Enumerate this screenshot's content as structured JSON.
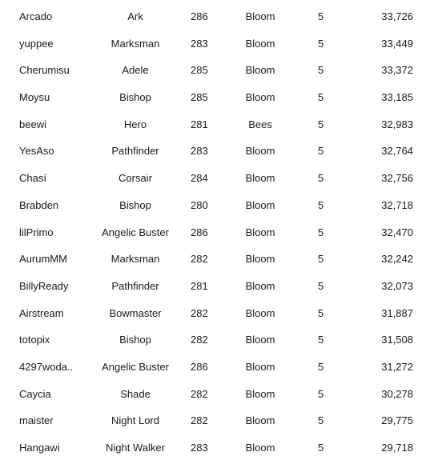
{
  "rankings": [
    {
      "name": "Arcado",
      "job": "Ark",
      "level": "286",
      "world": "Bloom",
      "stars": "5",
      "exp": "33,726"
    },
    {
      "name": "yuppee",
      "job": "Marksman",
      "level": "283",
      "world": "Bloom",
      "stars": "5",
      "exp": "33,449"
    },
    {
      "name": "Cherumisu",
      "job": "Adele",
      "level": "285",
      "world": "Bloom",
      "stars": "5",
      "exp": "33,372"
    },
    {
      "name": "Moysu",
      "job": "Bishop",
      "level": "285",
      "world": "Bloom",
      "stars": "5",
      "exp": "33,185"
    },
    {
      "name": "beewi",
      "job": "Hero",
      "level": "281",
      "world": "Bees",
      "stars": "5",
      "exp": "32,983"
    },
    {
      "name": "YesAso",
      "job": "Pathfinder",
      "level": "283",
      "world": "Bloom",
      "stars": "5",
      "exp": "32,764"
    },
    {
      "name": "Chasí",
      "job": "Corsair",
      "level": "284",
      "world": "Bloom",
      "stars": "5",
      "exp": "32,756"
    },
    {
      "name": "Brabden",
      "job": "Bishop",
      "level": "280",
      "world": "Bloom",
      "stars": "5",
      "exp": "32,718"
    },
    {
      "name": "lilPrimo",
      "job": "Angelic Buster",
      "level": "286",
      "world": "Bloom",
      "stars": "5",
      "exp": "32,470"
    },
    {
      "name": "AurumMM",
      "job": "Marksman",
      "level": "282",
      "world": "Bloom",
      "stars": "5",
      "exp": "32,242"
    },
    {
      "name": "BillyReady",
      "job": "Pathfinder",
      "level": "281",
      "world": "Bloom",
      "stars": "5",
      "exp": "32,073"
    },
    {
      "name": "Airstream",
      "job": "Bowmaster",
      "level": "282",
      "world": "Bloom",
      "stars": "5",
      "exp": "31,887"
    },
    {
      "name": "totopix",
      "job": "Bishop",
      "level": "282",
      "world": "Bloom",
      "stars": "5",
      "exp": "31,508"
    },
    {
      "name": "4297woda..",
      "job": "Angelic Buster",
      "level": "286",
      "world": "Bloom",
      "stars": "5",
      "exp": "31,272"
    },
    {
      "name": "Caycia",
      "job": "Shade",
      "level": "282",
      "world": "Bloom",
      "stars": "5",
      "exp": "30,278"
    },
    {
      "name": "maister",
      "job": "Night Lord",
      "level": "282",
      "world": "Bloom",
      "stars": "5",
      "exp": "29,775"
    },
    {
      "name": "Hangawi",
      "job": "Night Walker",
      "level": "283",
      "world": "Bloom",
      "stars": "5",
      "exp": "29,718"
    }
  ]
}
